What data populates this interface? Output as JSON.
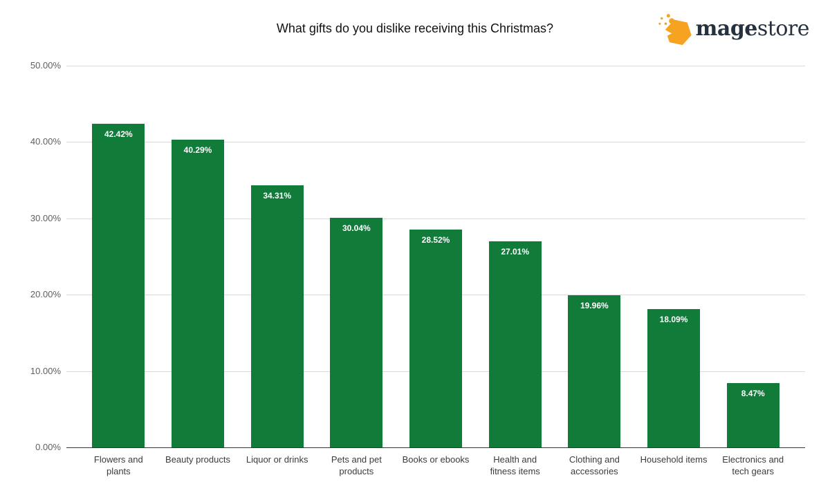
{
  "page": {
    "background": "#ffffff"
  },
  "logo": {
    "bold_part": "mage",
    "light_part": "store",
    "icon_color": "#f6a322",
    "text_color": "#25313f"
  },
  "chart_data": {
    "type": "bar",
    "title": "What gifts do you dislike receiving this Christmas?",
    "categories": [
      "Flowers and plants",
      "Beauty products",
      "Liquor or drinks",
      "Pets and pet products",
      "Books or ebooks",
      "Health and fitness items",
      "Clothing and accessories",
      "Household items",
      "Electronics and tech gears"
    ],
    "values": [
      42.42,
      40.29,
      34.31,
      30.04,
      28.52,
      27.01,
      19.96,
      18.09,
      8.47
    ],
    "value_labels": [
      "42.42%",
      "40.29%",
      "34.31%",
      "30.04%",
      "28.52%",
      "27.01%",
      "19.96%",
      "18.09%",
      "8.47%"
    ],
    "xlabel": "",
    "ylabel": "",
    "ylim": [
      0,
      50
    ],
    "ytick_values": [
      50,
      40,
      30,
      20,
      10,
      0
    ],
    "ytick_labels": [
      "50.00%",
      "40.00%",
      "30.00%",
      "20.00%",
      "10.00%",
      "0.00%"
    ],
    "grid": true,
    "legend": "none",
    "bar_color": "#117b3a",
    "value_label_color": "#ffffff",
    "gridline_color": "#d9d9d9",
    "baseline_color": "#333333"
  }
}
